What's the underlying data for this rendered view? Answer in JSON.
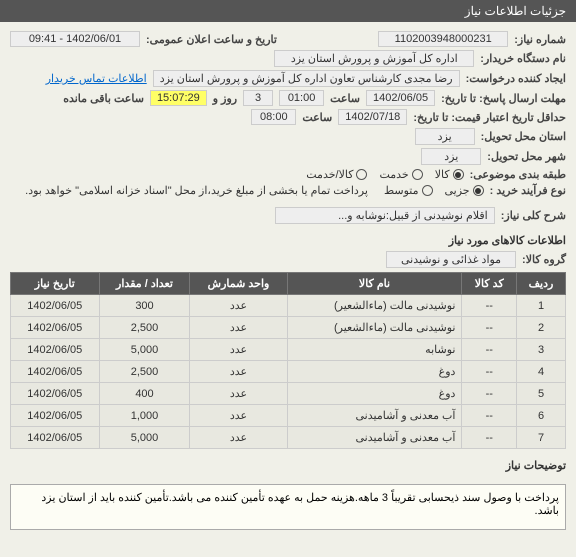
{
  "header": {
    "title": "جزئیات اطلاعات نیاز"
  },
  "fields": {
    "need_no_lbl": "شماره نیاز:",
    "need_no": "1102003948000231",
    "pub_date_lbl": "تاریخ و ساعت اعلان عمومی:",
    "pub_date": "1402/06/01 - 09:41",
    "buyer_lbl": "نام دستگاه خریدار:",
    "buyer": "اداره کل آموزش و پرورش استان یزد",
    "creator_lbl": "ایجاد کننده درخواست:",
    "creator": "رضا مجدی کارشناس تعاون اداره کل آموزش و پرورش استان یزد",
    "contact_link": "اطلاعات تماس خریدار",
    "deadline_lbl": "مهلت ارسال پاسخ: تا تاریخ:",
    "deadline_date": "1402/06/05",
    "deadline_time_lbl": "ساعت",
    "deadline_time": "01:00",
    "remain_days": "3",
    "remain_days_lbl": "روز و",
    "remain_time": "15:07:29",
    "remain_suffix": "ساعت باقی مانده",
    "min_valid_lbl": "حداقل تاریخ اعتبار قیمت: تا تاریخ:",
    "min_valid_date": "1402/07/18",
    "min_valid_time": "08:00",
    "province_lbl": "استان محل تحویل:",
    "province": "یزد",
    "city_lbl": "شهر محل تحویل:",
    "city": "یزد",
    "class_lbl": "طبقه بندی موضوعی:",
    "class_opts": [
      "کالا",
      "خدمت",
      "کالا/خدمت"
    ],
    "class_sel": 0,
    "buy_type_lbl": "نوع فرآیند خرید :",
    "buy_type_opts": [
      "جزیی",
      "متوسط"
    ],
    "buy_type_sel": 0,
    "note": "پرداخت تمام یا بخشی از مبلغ خرید،از محل \"اسناد خزانه اسلامی\" خواهد بود.",
    "summary_lbl": "شرح کلی نیاز:",
    "summary": "اقلام نوشیدنی از قبیل:نوشابه و...",
    "items_title": "اطلاعات کالاهای مورد نیاز",
    "group_lbl": "گروه کالا:",
    "group": "مواد غذائی و نوشیدنی"
  },
  "table": {
    "cols": [
      "ردیف",
      "کد کالا",
      "نام کالا",
      "واحد شمارش",
      "تعداد / مقدار",
      "تاریخ نیاز"
    ],
    "rows": [
      [
        "1",
        "--",
        "نوشیدنی مالت (ماءالشعیر)",
        "عدد",
        "300",
        "1402/06/05"
      ],
      [
        "2",
        "--",
        "نوشیدنی مالت (ماءالشعیر)",
        "عدد",
        "2,500",
        "1402/06/05"
      ],
      [
        "3",
        "--",
        "نوشابه",
        "عدد",
        "5,000",
        "1402/06/05"
      ],
      [
        "4",
        "--",
        "دوغ",
        "عدد",
        "2,500",
        "1402/06/05"
      ],
      [
        "5",
        "--",
        "دوغ",
        "عدد",
        "400",
        "1402/06/05"
      ],
      [
        "6",
        "--",
        "آب معدنی و آشامیدنی",
        "عدد",
        "1,000",
        "1402/06/05"
      ],
      [
        "7",
        "--",
        "آب معدنی و آشامیدنی",
        "عدد",
        "5,000",
        "1402/06/05"
      ]
    ]
  },
  "desc_lbl": "توضیحات نیاز",
  "desc": "پرداخت با وصول سند ذیحسابی تقریباً 3 ماهه.هزینه حمل به عهده تأمین کننده می باشد.تأمین کننده باید از استان یزد باشد."
}
